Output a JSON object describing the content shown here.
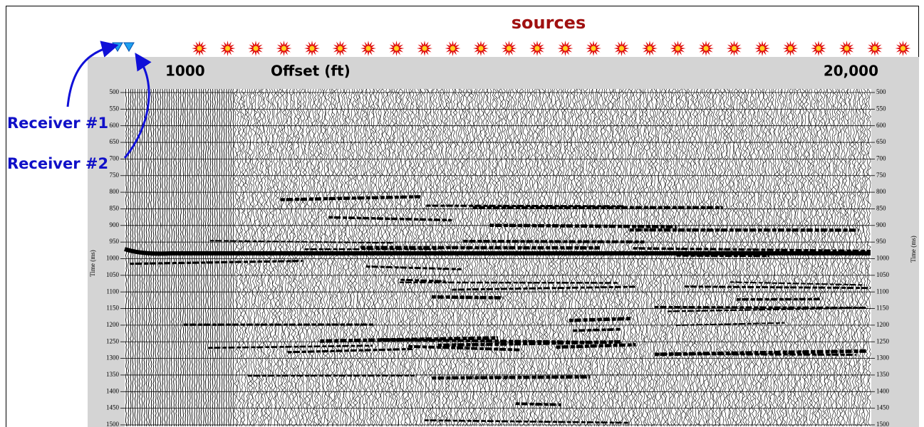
{
  "header": {
    "sources": "sources",
    "offset_label": "Offset (ft)",
    "offset_start": "1000",
    "offset_end": "20,000"
  },
  "receivers": [
    "Receiver  #1",
    "Receiver  #2"
  ],
  "time_axis": {
    "label": "Time (ms)",
    "ticks": [
      500,
      550,
      600,
      650,
      700,
      750,
      800,
      850,
      900,
      950,
      1000,
      1050,
      1100,
      1150,
      1200,
      1250,
      1300,
      1350,
      1400,
      1450,
      1500
    ]
  }
}
